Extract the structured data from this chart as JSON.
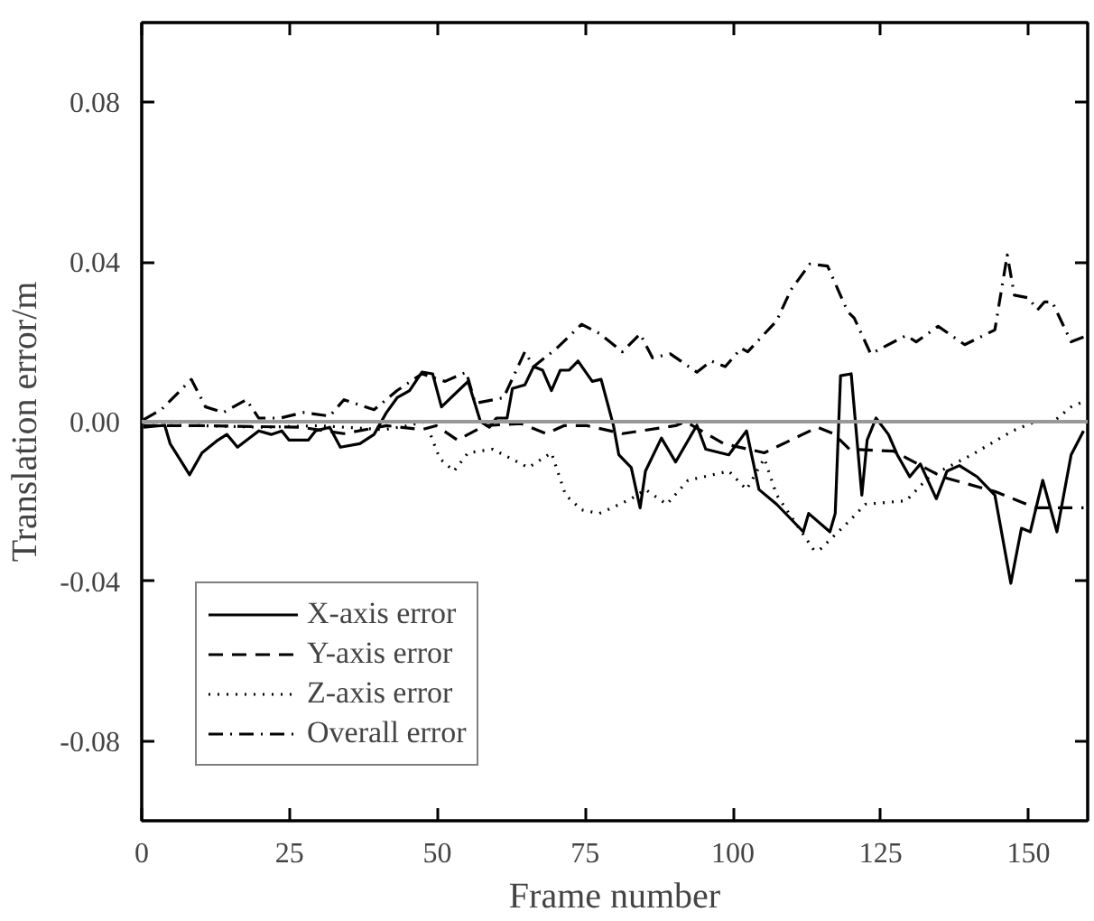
{
  "chart_data": {
    "type": "line",
    "xlabel": "Frame number",
    "ylabel": "Translation error/m",
    "xlim": [
      0,
      160
    ],
    "xticks": [
      0,
      25,
      50,
      75,
      100,
      125,
      150
    ],
    "ylim": [
      -0.1,
      0.1
    ],
    "yticks": [
      {
        "value": -0.08,
        "label": "-0.08"
      },
      {
        "value": -0.04,
        "label": "-0.04"
      },
      {
        "value": 0,
        "label": "0.00"
      },
      {
        "value": 0.04,
        "label": "0.04"
      },
      {
        "value": 0.08,
        "label": "0.08"
      }
    ],
    "grid": false,
    "legend": "bottom left",
    "marker": "none",
    "ref_lines": [
      {
        "axis": "y",
        "value": 0,
        "color": "#999999",
        "line_style": "solid"
      }
    ],
    "series": [
      {
        "name": "X-axis error",
        "color": "#000000",
        "line_style": "solid",
        "x": [
          0.3,
          3.9,
          4.8,
          8.1,
          10.2,
          12.9,
          14.4,
          16.2,
          19.8,
          21.9,
          23.7,
          24.9,
          28.2,
          29.4,
          31.8,
          33.6,
          36.9,
          39.3,
          41.4,
          43.2,
          45.3,
          47.4,
          49.2,
          50.7,
          55.2,
          57.3,
          58.8,
          60,
          61.8,
          62.7,
          64.8,
          66.3,
          67.8,
          69.3,
          70.8,
          72.3,
          73.8,
          76.2,
          77.7,
          79.8,
          80.7,
          82.8,
          84.3,
          85.2,
          87.9,
          90.3,
          93.9,
          95.4,
          99.3,
          102.3,
          104.4,
          107.4,
          111.9,
          112.8,
          116.4,
          117.3,
          118.2,
          120,
          121.8,
          122.7,
          124.2,
          126.3,
          127.8,
          129.9,
          131.7,
          134.4,
          136.2,
          138.3,
          141.3,
          144.3,
          147,
          148.8,
          150.3,
          152.4,
          154.8,
          157.2,
          159.3
        ],
        "values": [
          -0.0014,
          -0.0009,
          -0.0055,
          -0.0133,
          -0.0078,
          -0.0046,
          -0.0032,
          -0.0064,
          -0.0023,
          -0.0032,
          -0.0023,
          -0.0046,
          -0.0046,
          -0.0023,
          -0.0014,
          -0.0064,
          -0.0055,
          -0.0032,
          0.0023,
          0.006,
          0.0078,
          0.0124,
          0.012,
          0.0037,
          0.0101,
          0,
          -0.0014,
          0.0009,
          0.0009,
          0.0083,
          0.0092,
          0.0138,
          0.0129,
          0.0078,
          0.0129,
          0.0129,
          0.0152,
          0.0101,
          0.0106,
          -0.001,
          -0.0083,
          -0.0115,
          -0.0216,
          -0.0124,
          -0.0041,
          -0.0101,
          -0.0009,
          -0.0069,
          -0.0083,
          -0.0023,
          -0.017,
          -0.0207,
          -0.0276,
          -0.023,
          -0.0276,
          -0.023,
          0.0115,
          0.012,
          -0.0184,
          -0.0046,
          0.0009,
          -0.0032,
          -0.0083,
          -0.0138,
          -0.0106,
          -0.0193,
          -0.0124,
          -0.011,
          -0.0138,
          -0.0184,
          -0.0405,
          -0.0267,
          -0.0276,
          -0.0147,
          -0.0276,
          -0.0083,
          -0.0023
        ]
      },
      {
        "name": "Y-axis error",
        "color": "#000000",
        "line_style": "dashed",
        "x": [
          0.3,
          10,
          27,
          34.2,
          41.4,
          47.4,
          49.8,
          53.4,
          58,
          64.2,
          68.4,
          71.4,
          75.3,
          81.3,
          90.3,
          92,
          98.4,
          105.3,
          114.3,
          117,
          119.7,
          127.2,
          135.3,
          144.3,
          151.2,
          159.3
        ],
        "values": [
          -0.001,
          -0.001,
          -0.0014,
          -0.003,
          -0.001,
          -0.002,
          -0.001,
          -0.0046,
          -0.001,
          -0.0005,
          -0.003,
          -0.001,
          -0.001,
          -0.003,
          -0.001,
          0,
          -0.0055,
          -0.0078,
          -0.0014,
          -0.003,
          -0.0069,
          -0.0074,
          -0.0138,
          -0.0175,
          -0.0216,
          -0.0216
        ]
      },
      {
        "name": "Z-axis error",
        "color": "#000000",
        "line_style": "dotted",
        "x": [
          0.3,
          10,
          20,
          30,
          41,
          45,
          48,
          50.4,
          52.8,
          55.2,
          59.4,
          65.4,
          69.3,
          71.7,
          74.4,
          77.4,
          80.4,
          82.8,
          85.2,
          88.8,
          92.4,
          99.3,
          102.3,
          105.3,
          107.4,
          113.7,
          114.6,
          119.4,
          122.4,
          129.3,
          133.2,
          140.4,
          147.3,
          151.2,
          154.2,
          157.2,
          160
        ],
        "values": [
          -0.001,
          -0.001,
          -0.0014,
          -0.001,
          -0.002,
          -0.001,
          0,
          -0.0092,
          -0.0124,
          -0.0078,
          -0.0069,
          -0.0115,
          -0.0078,
          -0.0184,
          -0.0221,
          -0.023,
          -0.021,
          -0.0193,
          -0.017,
          -0.0207,
          -0.0147,
          -0.0124,
          -0.017,
          -0.0092,
          -0.0184,
          -0.0322,
          -0.0322,
          -0.0253,
          -0.0207,
          -0.0198,
          -0.0138,
          -0.0083,
          -0.0023,
          0,
          0,
          0.0037,
          0.0055
        ]
      },
      {
        "name": "Overall error",
        "color": "#000000",
        "line_style": "dashdot",
        "x": [
          0.3,
          3.3,
          8.4,
          10.8,
          13.8,
          17.7,
          19.8,
          23.4,
          27.3,
          31.8,
          34.2,
          39.3,
          43.2,
          47.4,
          51.3,
          54.9,
          56.4,
          61.2,
          64.8,
          66.3,
          70.2,
          74.4,
          77.4,
          81.3,
          84.3,
          86.4,
          89.4,
          93.9,
          96.3,
          98.7,
          101.4,
          102.5,
          107.4,
          109.8,
          113,
          116,
          119.4,
          120.5,
          123.3,
          129.3,
          131,
          134.7,
          139.2,
          144.3,
          146.4,
          147.6,
          150,
          151.5,
          152.7,
          154,
          157.2,
          160
        ],
        "values": [
          0.0005,
          0.003,
          0.0106,
          0.0037,
          0.0023,
          0.0055,
          0.0009,
          0.0009,
          0.0023,
          0.0014,
          0.0055,
          0.003,
          0.0078,
          0.012,
          0.0101,
          0.0124,
          0.0046,
          0.006,
          0.0175,
          0.0138,
          0.0184,
          0.0244,
          0.0221,
          0.0175,
          0.022,
          0.016,
          0.017,
          0.0124,
          0.0152,
          0.0138,
          0.0184,
          0.0175,
          0.0253,
          0.033,
          0.0395,
          0.039,
          0.0276,
          0.026,
          0.017,
          0.0216,
          0.02,
          0.0239,
          0.0193,
          0.023,
          0.0418,
          0.0317,
          0.031,
          0.028,
          0.03,
          0.03,
          0.02,
          0.0216
        ]
      }
    ]
  }
}
